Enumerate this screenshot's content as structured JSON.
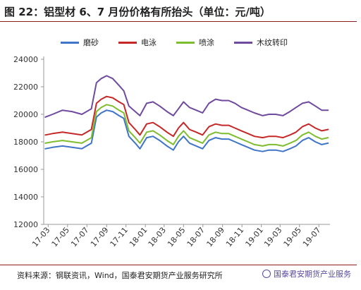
{
  "figure": {
    "title": "图 22：铝型材 6、7 月份价格有所抬头（单位：元/吨）",
    "source": "资料来源：钢联资讯，Wind，国泰君安期货产业服务研究所",
    "watermark": "国泰君安期货产业服务"
  },
  "chart_data": {
    "type": "line",
    "ylim": [
      12000,
      24000
    ],
    "yticks": [
      12000,
      14000,
      16000,
      18000,
      20000,
      22000,
      24000
    ],
    "x_dates": [
      "2017-02-20",
      "2017-03-15",
      "2017-04-15",
      "2017-05-15",
      "2017-06-15",
      "2017-07-15",
      "2017-07-31",
      "2017-08-15",
      "2017-09-01",
      "2017-09-20",
      "2017-10-10",
      "2017-10-25",
      "2017-11-10",
      "2017-11-30",
      "2017-12-15",
      "2018-01-05",
      "2018-01-25",
      "2018-02-15",
      "2018-03-10",
      "2018-03-30",
      "2018-04-15",
      "2018-05-01",
      "2018-05-20",
      "2018-06-10",
      "2018-06-30",
      "2018-07-20",
      "2018-08-10",
      "2018-08-30",
      "2018-09-20",
      "2018-10-10",
      "2018-10-30",
      "2018-11-20",
      "2018-12-10",
      "2019-01-05",
      "2019-01-25",
      "2019-02-15",
      "2019-03-10",
      "2019-04-01",
      "2019-04-20",
      "2019-05-10",
      "2019-05-30",
      "2019-06-20",
      "2019-07-10",
      "2019-07-30"
    ],
    "xtick_labels": [
      "17-03",
      "17-05",
      "17-07",
      "17-09",
      "17-11",
      "18-01",
      "18-03",
      "18-05",
      "18-07",
      "18-09",
      "18-11",
      "19-01",
      "19-03",
      "19-05",
      "19-07"
    ],
    "xtick_dates": [
      "2017-03-01",
      "2017-05-01",
      "2017-07-01",
      "2017-09-01",
      "2017-11-01",
      "2018-01-01",
      "2018-03-01",
      "2018-05-01",
      "2018-07-01",
      "2018-09-01",
      "2018-11-01",
      "2019-01-01",
      "2019-03-01",
      "2019-05-01",
      "2019-07-01"
    ],
    "x_range": [
      "2017-02-15",
      "2019-08-05"
    ],
    "series": [
      {
        "name": "磨砂",
        "color": "#3f74c8",
        "values": [
          17500,
          17600,
          17700,
          17600,
          17500,
          17900,
          19800,
          20100,
          20300,
          20200,
          19900,
          19700,
          18400,
          17900,
          17500,
          18300,
          18400,
          18100,
          17700,
          17400,
          18000,
          18400,
          17900,
          17700,
          17500,
          18100,
          18300,
          18200,
          18200,
          18000,
          17800,
          17600,
          17400,
          17300,
          17400,
          17400,
          17300,
          17500,
          17700,
          18100,
          18300,
          18000,
          17800,
          17900
        ]
      },
      {
        "name": "电泳",
        "color": "#c62828",
        "values": [
          18500,
          18600,
          18700,
          18600,
          18500,
          18900,
          20800,
          21100,
          21300,
          21200,
          20900,
          20700,
          19400,
          18900,
          18500,
          19300,
          19400,
          19100,
          18700,
          18400,
          19000,
          19400,
          18900,
          18700,
          18500,
          19100,
          19300,
          19200,
          19200,
          19000,
          18800,
          18600,
          18400,
          18300,
          18400,
          18400,
          18300,
          18500,
          18700,
          19100,
          19300,
          19000,
          18800,
          18900
        ]
      },
      {
        "name": "喷涂",
        "color": "#7dbd2e",
        "values": [
          17900,
          18000,
          18100,
          18000,
          17900,
          18300,
          20200,
          20500,
          20700,
          20600,
          20300,
          20100,
          18800,
          18300,
          17900,
          18700,
          18800,
          18500,
          18100,
          17800,
          18400,
          18800,
          18300,
          18100,
          17900,
          18500,
          18700,
          18600,
          18600,
          18400,
          18200,
          18000,
          17800,
          17700,
          17800,
          17800,
          17700,
          17900,
          18100,
          18500,
          18700,
          18400,
          18200,
          18300
        ]
      },
      {
        "name": "木纹转印",
        "color": "#6f4a9e",
        "values": [
          19800,
          20000,
          20300,
          20200,
          20000,
          20400,
          22300,
          22600,
          22800,
          22600,
          22100,
          21700,
          20600,
          20200,
          19900,
          20800,
          20900,
          20600,
          20200,
          19900,
          20400,
          20900,
          20500,
          20300,
          20100,
          20800,
          21100,
          21000,
          21000,
          20800,
          20500,
          20300,
          20100,
          19900,
          20000,
          20000,
          19900,
          20200,
          20500,
          20800,
          20900,
          20600,
          20300,
          20300
        ]
      }
    ]
  }
}
